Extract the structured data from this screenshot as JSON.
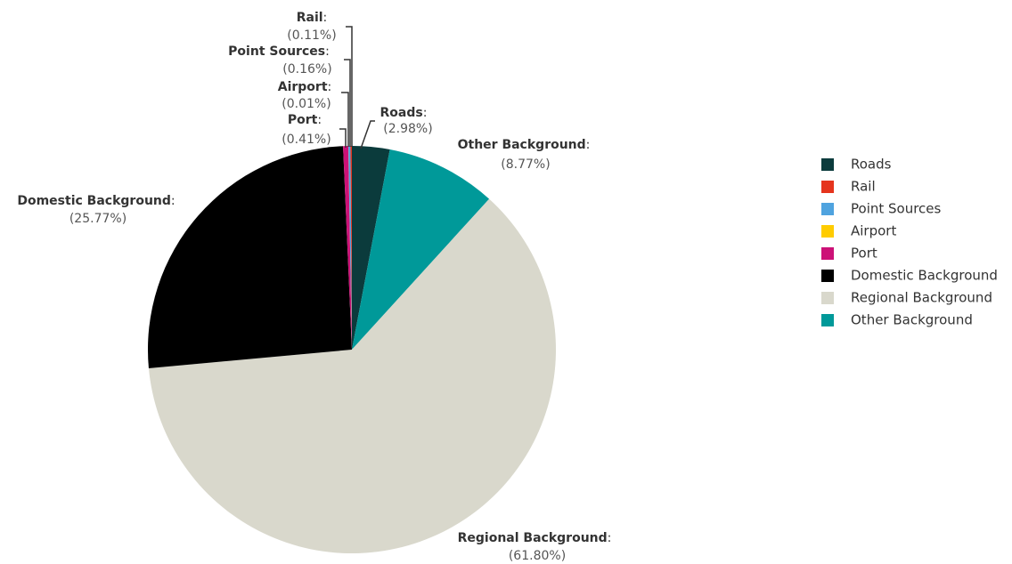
{
  "chart_data": {
    "type": "pie",
    "categories": [
      "Roads",
      "Rail",
      "Point Sources",
      "Airport",
      "Port",
      "Domestic Background",
      "Regional Background",
      "Other Background"
    ],
    "values": [
      2.98,
      0.11,
      0.16,
      0.01,
      0.41,
      25.77,
      61.8,
      8.77
    ],
    "value_labels": [
      "(2.98%)",
      "(0.11%)",
      "(0.16%)",
      "(0.01%)",
      "(0.41%)",
      "(25.77%)",
      "(61.80%)",
      "(8.77%)"
    ],
    "label_suffix": ":",
    "colors": [
      "#0b3b3c",
      "#e5341d",
      "#4fa3df",
      "#ffcc00",
      "#cc1177",
      "#000000",
      "#d9d8cc",
      "#009999"
    ],
    "legend": "right"
  }
}
